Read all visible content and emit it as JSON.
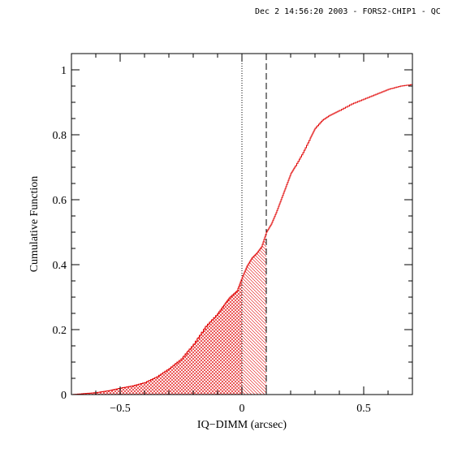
{
  "header": {
    "timestamp_label": "Dec  2 14:56:20 2003 - FORS2-CHIP1 - QC"
  },
  "colors": {
    "curve": "#e00000",
    "frame": "#000000",
    "background": "#ffffff"
  },
  "chart_data": {
    "type": "line",
    "title": "",
    "xlabel": "IQ−DIMM (arcsec)",
    "ylabel": "Cumulative Function",
    "xlim": [
      -0.7,
      0.7
    ],
    "ylim": [
      0,
      1.05
    ],
    "x_ticks": [
      {
        "value": -0.5,
        "label": "−0.5"
      },
      {
        "value": 0,
        "label": "0"
      },
      {
        "value": 0.5,
        "label": "0.5"
      }
    ],
    "y_ticks": [
      {
        "value": 0,
        "label": "0"
      },
      {
        "value": 0.2,
        "label": "0.2"
      },
      {
        "value": 0.4,
        "label": "0.4"
      },
      {
        "value": 0.6,
        "label": "0.6"
      },
      {
        "value": 0.8,
        "label": "0.8"
      },
      {
        "value": 1,
        "label": "1"
      }
    ],
    "vertical_lines": [
      {
        "x": 0,
        "style": "dotted"
      },
      {
        "x": 0.1,
        "style": "dashed"
      }
    ],
    "shaded_regions": [
      {
        "from": -0.7,
        "to": 0,
        "pattern": "crosshatch"
      },
      {
        "from": 0,
        "to": 0.1,
        "pattern": "hatch"
      }
    ],
    "grid": false,
    "series": [
      {
        "x": [
          -0.7,
          -0.65,
          -0.6,
          -0.55,
          -0.5,
          -0.45,
          -0.4,
          -0.35,
          -0.3,
          -0.25,
          -0.2,
          -0.15,
          -0.1,
          -0.07,
          -0.05,
          -0.02,
          0,
          0.02,
          0.04,
          0.06,
          0.08,
          0.1,
          0.12,
          0.14,
          0.16,
          0.18,
          0.2,
          0.22,
          0.25,
          0.28,
          0.3,
          0.33,
          0.36,
          0.4,
          0.45,
          0.5,
          0.55,
          0.6,
          0.65,
          0.7
        ],
        "y": [
          0.0,
          0.003,
          0.006,
          0.012,
          0.02,
          0.027,
          0.037,
          0.055,
          0.08,
          0.11,
          0.155,
          0.21,
          0.25,
          0.28,
          0.3,
          0.32,
          0.36,
          0.395,
          0.42,
          0.435,
          0.455,
          0.5,
          0.525,
          0.56,
          0.6,
          0.64,
          0.68,
          0.705,
          0.745,
          0.79,
          0.82,
          0.845,
          0.86,
          0.875,
          0.895,
          0.91,
          0.925,
          0.94,
          0.95,
          0.955
        ]
      }
    ]
  }
}
